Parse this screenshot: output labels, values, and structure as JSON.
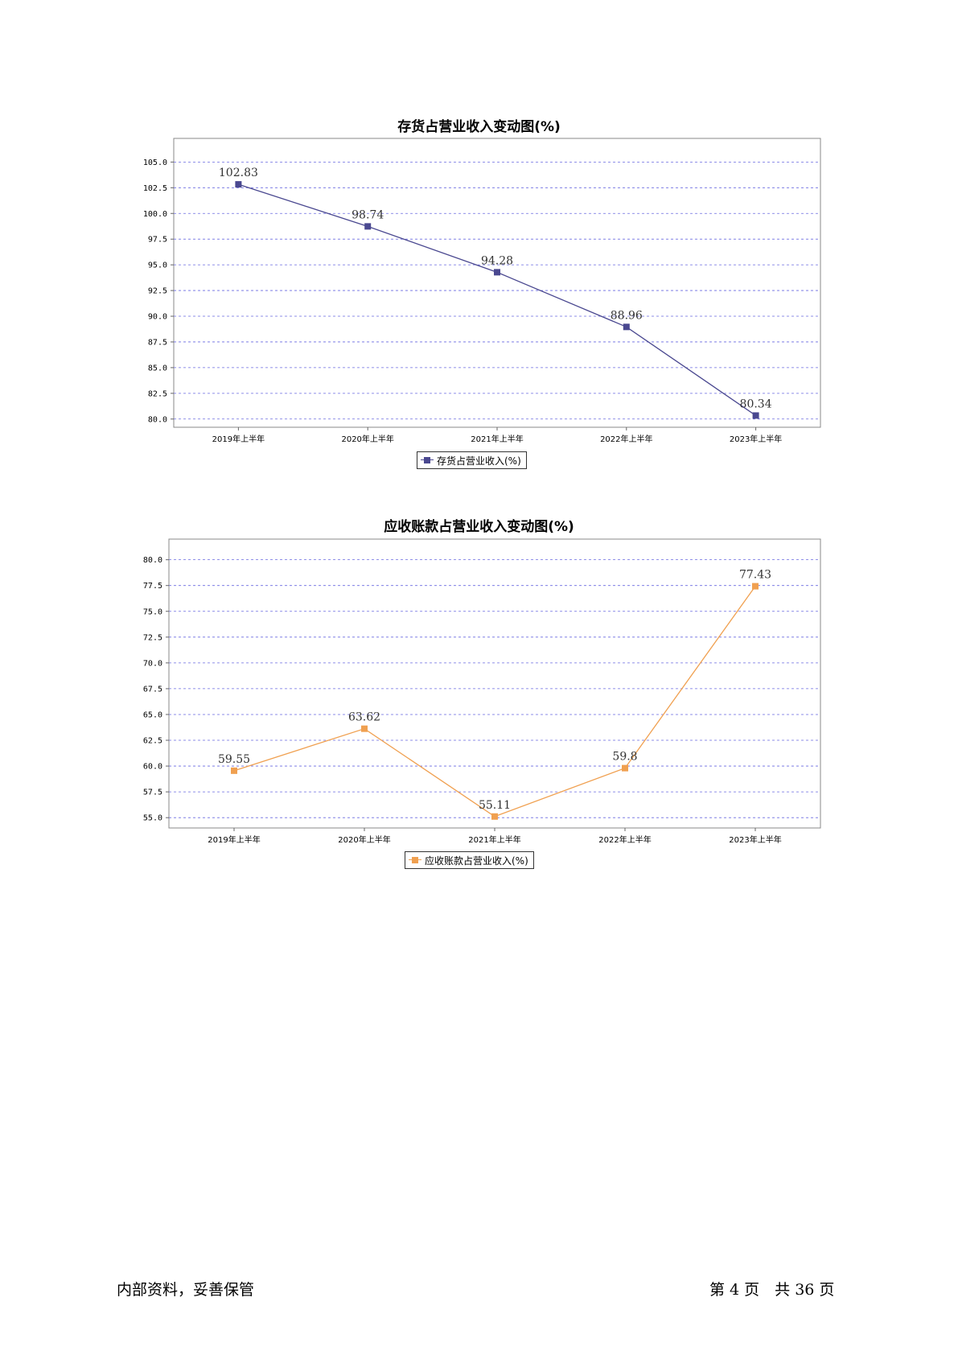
{
  "chart_data": [
    {
      "type": "line",
      "title": "存货占营业收入变动图(%)",
      "categories": [
        "2019年上半年",
        "2020年上半年",
        "2021年上半年",
        "2022年上半年",
        "2023年上半年"
      ],
      "series": [
        {
          "name": "存货占营业收入(%)",
          "values": [
            102.83,
            98.74,
            94.28,
            88.96,
            80.34
          ],
          "labels": [
            "102.83",
            "98.74",
            "94.28",
            "88.96",
            "80.34"
          ],
          "color": "#4a4890"
        }
      ],
      "ylim": [
        79.2,
        107.3
      ],
      "yticks": [
        80.0,
        82.5,
        85.0,
        87.5,
        90.0,
        92.5,
        95.0,
        97.5,
        100.0,
        102.5,
        105.0
      ],
      "ytick_labels": [
        "80.0",
        "82.5",
        "85.0",
        "87.5",
        "90.0",
        "92.5",
        "95.0",
        "97.5",
        "100.0",
        "102.5",
        "105.0"
      ],
      "grid": true,
      "legend": "bottom-center"
    },
    {
      "type": "line",
      "title": "应收账款占营业收入变动图(%)",
      "categories": [
        "2019年上半年",
        "2020年上半年",
        "2021年上半年",
        "2022年上半年",
        "2023年上半年"
      ],
      "series": [
        {
          "name": "应收账款占营业收入(%)",
          "values": [
            59.55,
            63.62,
            55.11,
            59.8,
            77.43
          ],
          "labels": [
            "59.55",
            "63.62",
            "55.11",
            "59.8",
            "77.43"
          ],
          "color": "#f0a050"
        }
      ],
      "ylim": [
        54.0,
        82.0
      ],
      "yticks": [
        55.0,
        57.5,
        60.0,
        62.5,
        65.0,
        67.5,
        70.0,
        72.5,
        75.0,
        77.5,
        80.0
      ],
      "ytick_labels": [
        "55.0",
        "57.5",
        "60.0",
        "62.5",
        "65.0",
        "67.5",
        "70.0",
        "72.5",
        "75.0",
        "77.5",
        "80.0"
      ],
      "grid": true,
      "legend": "bottom-center"
    }
  ],
  "footer": {
    "left": "内部资料，妥善保管",
    "right": "第 4 页　共 36 页"
  }
}
